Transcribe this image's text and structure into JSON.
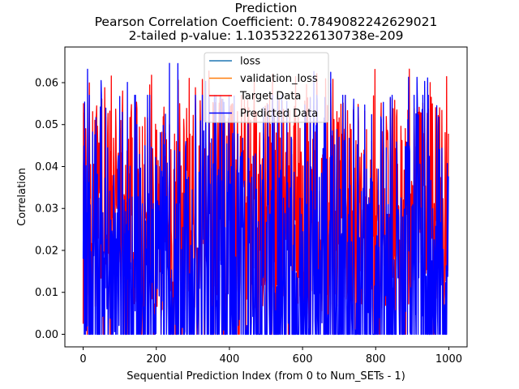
{
  "chart_data": {
    "type": "line",
    "title_lines": [
      "Prediction",
      "Pearson Correlation Coefficient: 0.7849082242629021",
      "2-tailed p-value: 1.103532226130738e-209"
    ],
    "xlabel": "Sequential Prediction Index (from 0 to Num_SETs - 1)",
    "ylabel": "Correlation",
    "xlim": [
      -50,
      1050
    ],
    "ylim": [
      -0.003,
      0.0685
    ],
    "xticks": [
      0,
      200,
      400,
      600,
      800,
      1000
    ],
    "yticks": [
      0.0,
      0.01,
      0.02,
      0.03,
      0.04,
      0.05,
      0.06
    ],
    "ytick_labels": [
      "0.00",
      "0.01",
      "0.02",
      "0.03",
      "0.04",
      "0.05",
      "0.06"
    ],
    "grid": false,
    "legend_position": "top-center",
    "n_points": 1000,
    "series": [
      {
        "name": "loss",
        "color": "#1f77b4",
        "values": []
      },
      {
        "name": "validation_loss",
        "color": "#ff7f0e",
        "values": []
      },
      {
        "name": "Target Data",
        "color": "#ff0000",
        "summary": {
          "min": 0.0,
          "max": 0.0645,
          "typical_range": [
            0.005,
            0.057
          ]
        },
        "sample_values": [
          0.025,
          0.018,
          0.055,
          0.012,
          0.04,
          0.032,
          0.045,
          0.008,
          0.036,
          0.05
        ]
      },
      {
        "name": "Predicted Data",
        "color": "#0000ff",
        "summary": {
          "min": 0.0,
          "max": 0.065,
          "typical_range": [
            0.0,
            0.057
          ]
        },
        "sample_values": [
          0.032,
          0.0,
          0.04,
          0.0,
          0.053,
          0.03,
          0.0,
          0.045,
          0.028,
          0.0
        ]
      }
    ]
  }
}
